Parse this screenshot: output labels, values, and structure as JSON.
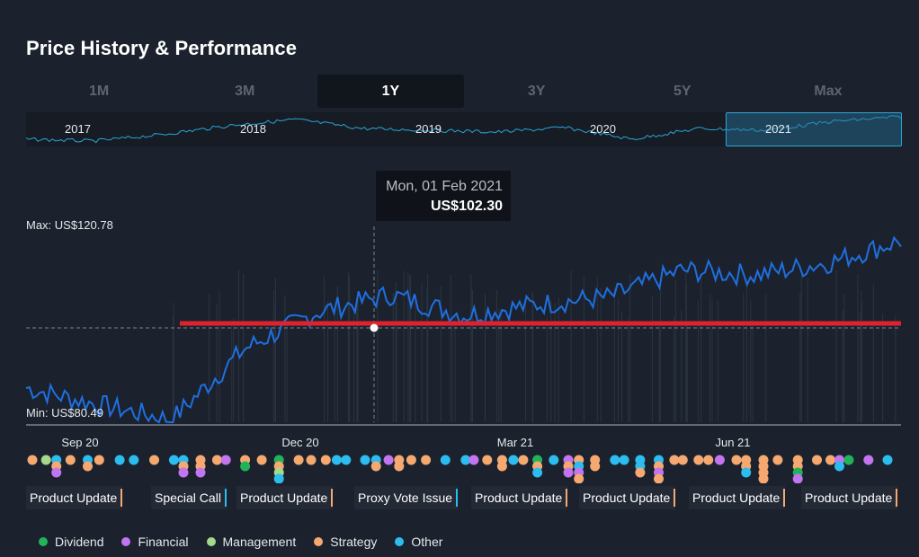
{
  "header": {
    "title": "Price History & Performance"
  },
  "range_tabs": [
    {
      "label": "1M",
      "active": false
    },
    {
      "label": "3M",
      "active": false
    },
    {
      "label": "1Y",
      "active": true
    },
    {
      "label": "3Y",
      "active": false
    },
    {
      "label": "5Y",
      "active": false
    },
    {
      "label": "Max",
      "active": false
    }
  ],
  "navigator": {
    "years": [
      "2017",
      "2018",
      "2019",
      "2020",
      "2021"
    ],
    "selected": "2021"
  },
  "chart": {
    "max_label": "Max: US$120.78",
    "min_label": "Min: US$80.49",
    "tooltip": {
      "date": "Mon, 01 Feb 2021",
      "price": "US$102.30"
    },
    "x_ticks": [
      "Sep 20",
      "Dec 20",
      "Mar 21",
      "Jun 21"
    ]
  },
  "colors": {
    "line": "#1f6fe0",
    "nav_line": "#2aa6d6",
    "ref_line": "#e0222f",
    "Dividend": "#22b35a",
    "Financial": "#c375f0",
    "Management": "#a5d88b",
    "Strategy": "#f5a971",
    "Other": "#2cbcf0"
  },
  "event_labels": [
    {
      "text": "Product Update",
      "category": "Strategy"
    },
    {
      "text": "Special Call",
      "category": "Other"
    },
    {
      "text": "Product Update",
      "category": "Strategy"
    },
    {
      "text": "Proxy Vote Issue",
      "category": "Other"
    },
    {
      "text": "Product Update",
      "category": "Strategy"
    },
    {
      "text": "Product Update",
      "category": "Strategy"
    },
    {
      "text": "Product Update",
      "category": "Strategy"
    },
    {
      "text": "Product Update",
      "category": "Strategy"
    }
  ],
  "legend": [
    {
      "label": "Dividend",
      "category": "Dividend"
    },
    {
      "label": "Financial",
      "category": "Financial"
    },
    {
      "label": "Management",
      "category": "Management"
    },
    {
      "label": "Strategy",
      "category": "Strategy"
    },
    {
      "label": "Other",
      "category": "Other"
    }
  ],
  "chart_data": {
    "type": "line",
    "ylim": [
      80.49,
      120.78
    ],
    "x": [
      "Aug 2020",
      "Sep 2020",
      "Oct 2020",
      "Nov 2020",
      "Dec 2020",
      "Jan 2021",
      "Feb 2021",
      "Mar 2021",
      "Apr 2021",
      "May 2021",
      "Jun 2021",
      "Jul 2021",
      "Aug 2021"
    ],
    "series": [
      {
        "values": [
          87.5,
          84.0,
          81.0,
          95.5,
          103.0,
          106.5,
          102.3,
          104.5,
          106.0,
          111.5,
          110.5,
          113.0,
          117.5
        ]
      }
    ],
    "tooltip_point": {
      "x": "Mon, 01 Feb 2021",
      "y": 102.3
    }
  }
}
